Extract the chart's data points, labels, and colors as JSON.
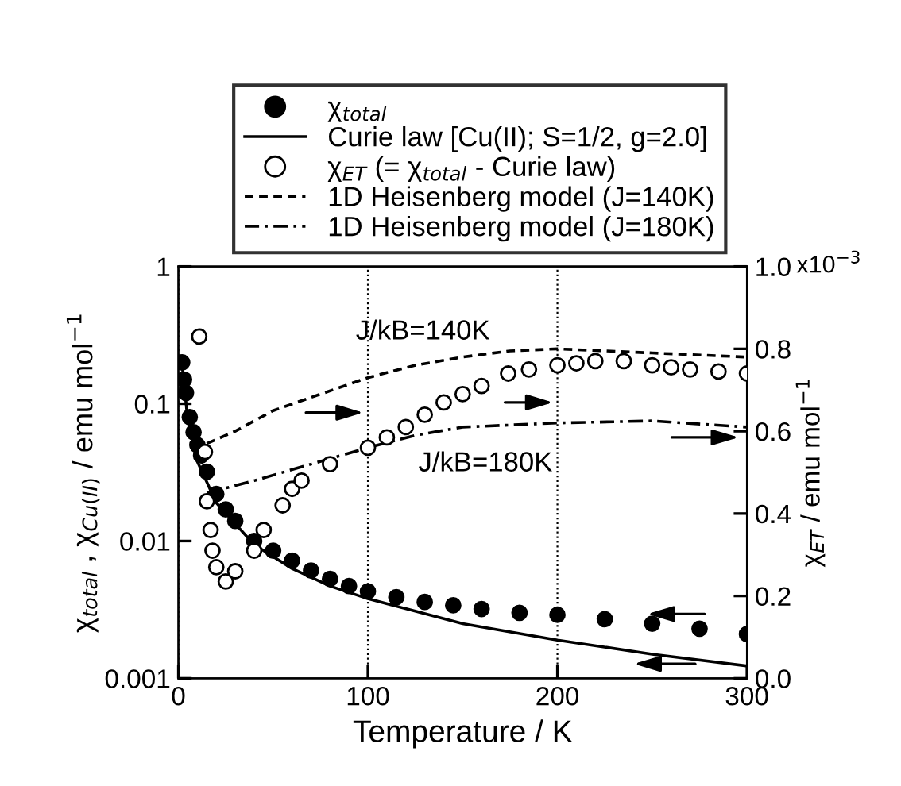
{
  "chart_data": {
    "type": "scatter",
    "xlabel": "Temperature / K",
    "ylabel": "χ$_{total}$ , χ$_{Cu(II)}$ / emu mol$^{−1}$",
    "y2label": "χ$_{ET}$ / emu mol$^{−1}$",
    "xlim": [
      0,
      300
    ],
    "xticks": [
      0,
      100,
      200,
      300
    ],
    "log": "y",
    "ylim": [
      0.001,
      1
    ],
    "yticks": [
      {
        "value": 0.001,
        "label": "0.001"
      },
      {
        "value": 0.01,
        "label": "0.01"
      },
      {
        "value": 0.1,
        "label": "0.1"
      },
      {
        "value": 1,
        "label": "1"
      }
    ],
    "y2lim": [
      0,
      1.0
    ],
    "y2ticks": [
      {
        "value": 0.0,
        "label": "0.0"
      },
      {
        "value": 0.2,
        "label": "0.2"
      },
      {
        "value": 0.4,
        "label": "0.4"
      },
      {
        "value": 0.6,
        "label": "0.6"
      },
      {
        "value": 0.8,
        "label": "0.8"
      },
      {
        "value": 1.0,
        "label": "1.0"
      }
    ],
    "grid": "x",
    "legend": "top",
    "annotations": [
      "J/kB=140K",
      "J/kB=180K",
      "x10$^{−3}$"
    ],
    "series": [
      {
        "name": "χ$_{total}$",
        "marker": "circle",
        "color": "#000000",
        "x": [
          2,
          3,
          4,
          6,
          8,
          10,
          12,
          15,
          20,
          25,
          30,
          40,
          50,
          60,
          70,
          80,
          90,
          100,
          115,
          130,
          145,
          160,
          180,
          200,
          225,
          250,
          275,
          300
        ],
        "values": [
          0.2,
          0.15,
          0.12,
          0.08,
          0.062,
          0.05,
          0.042,
          0.032,
          0.022,
          0.017,
          0.014,
          0.01,
          0.0085,
          0.0072,
          0.0061,
          0.0053,
          0.0047,
          0.0043,
          0.0039,
          0.0036,
          0.0034,
          0.0032,
          0.003,
          0.0029,
          0.0027,
          0.0025,
          0.0023,
          0.0021
        ]
      },
      {
        "name": "Curie law [Cu(II); S=1/2, g=2.0]",
        "type": "line",
        "line_style": "solid",
        "color": "#000000",
        "x": [
          2,
          5,
          10,
          20,
          40,
          60,
          80,
          100,
          150,
          200,
          250,
          300
        ],
        "values": [
          0.19,
          0.075,
          0.038,
          0.019,
          0.0094,
          0.0063,
          0.0047,
          0.0038,
          0.0025,
          0.0019,
          0.0015,
          0.00123
        ]
      },
      {
        "name": "χ$_{ET}$ (= χ$_{total}$ - Curie law)",
        "marker": "circle",
        "axis": "y2",
        "color": "#ffffff",
        "x": [
          11,
          14,
          15,
          17,
          18,
          20,
          25,
          30,
          40,
          45,
          55,
          60,
          65,
          80,
          100,
          110,
          120,
          130,
          140,
          150,
          160,
          174,
          185,
          200,
          210,
          220,
          235,
          250,
          260,
          270,
          285,
          300
        ],
        "values": [
          0.83,
          0.55,
          0.43,
          0.36,
          0.31,
          0.27,
          0.235,
          0.26,
          0.31,
          0.36,
          0.42,
          0.46,
          0.48,
          0.52,
          0.56,
          0.585,
          0.61,
          0.64,
          0.67,
          0.69,
          0.71,
          0.74,
          0.75,
          0.76,
          0.765,
          0.77,
          0.77,
          0.76,
          0.755,
          0.75,
          0.745,
          0.74
        ]
      },
      {
        "name": "1D Heisenberg model (J=140K)",
        "type": "line",
        "line_style": "dashed",
        "axis": "y2",
        "color": "#000000",
        "x": [
          15,
          30,
          50,
          75,
          100,
          125,
          150,
          175,
          200,
          250,
          300
        ],
        "values": [
          0.57,
          0.6,
          0.65,
          0.69,
          0.73,
          0.76,
          0.78,
          0.795,
          0.8,
          0.79,
          0.78
        ]
      },
      {
        "name": "1D Heisenberg model (J=180K)",
        "type": "line",
        "line_style": "dashdot",
        "axis": "y2",
        "color": "#000000",
        "x": [
          15,
          40,
          70,
          100,
          125,
          150,
          175,
          200,
          250,
          300
        ],
        "values": [
          0.45,
          0.48,
          0.52,
          0.56,
          0.59,
          0.61,
          0.615,
          0.62,
          0.625,
          0.61
        ]
      }
    ]
  }
}
